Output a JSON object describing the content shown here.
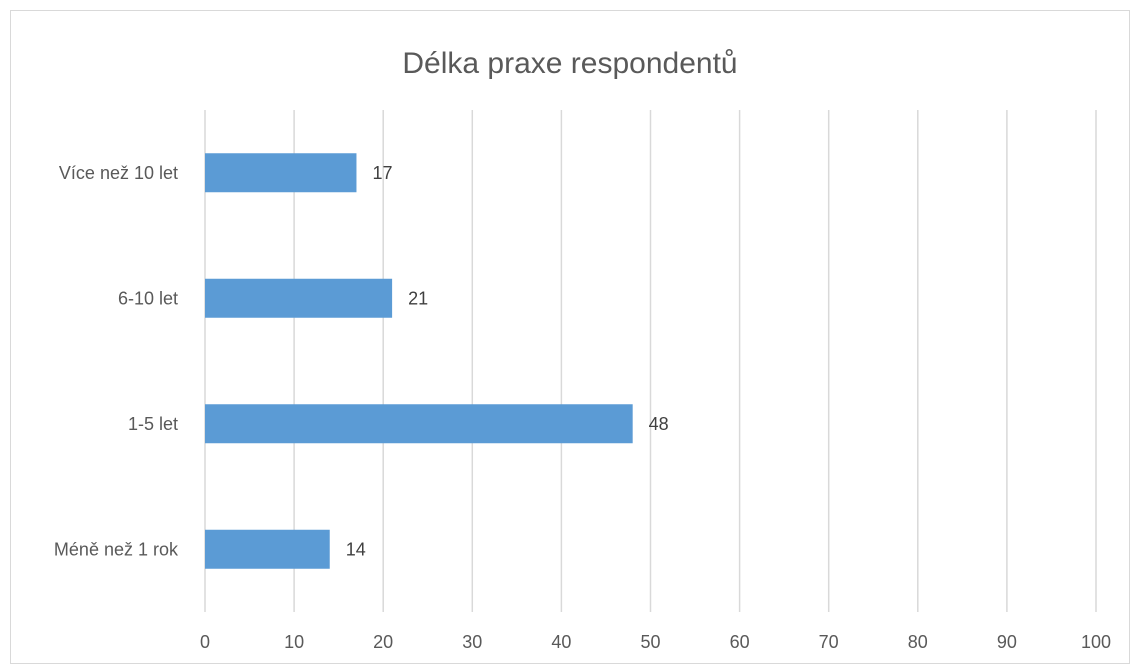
{
  "chart_data": {
    "type": "bar",
    "orientation": "horizontal",
    "title": "Délka praxe respondentů",
    "categories": [
      "Méně než 1 rok",
      "1-5 let",
      "6-10 let",
      "Více než 10 let"
    ],
    "values": [
      14,
      48,
      21,
      17
    ],
    "data_labels": [
      "14",
      "48",
      "21",
      "17"
    ],
    "xlim": [
      0,
      100
    ],
    "x_ticks": [
      0,
      10,
      20,
      30,
      40,
      50,
      60,
      70,
      80,
      90,
      100
    ],
    "x_tick_labels": [
      "0",
      "10",
      "20",
      "30",
      "40",
      "50",
      "60",
      "70",
      "80",
      "90",
      "100"
    ],
    "xlabel": "",
    "ylabel": "",
    "grid": "vertical",
    "legend": "none",
    "colors": {
      "bar": "#5b9bd5",
      "grid": "#d9d9d9",
      "text": "#595959"
    }
  }
}
